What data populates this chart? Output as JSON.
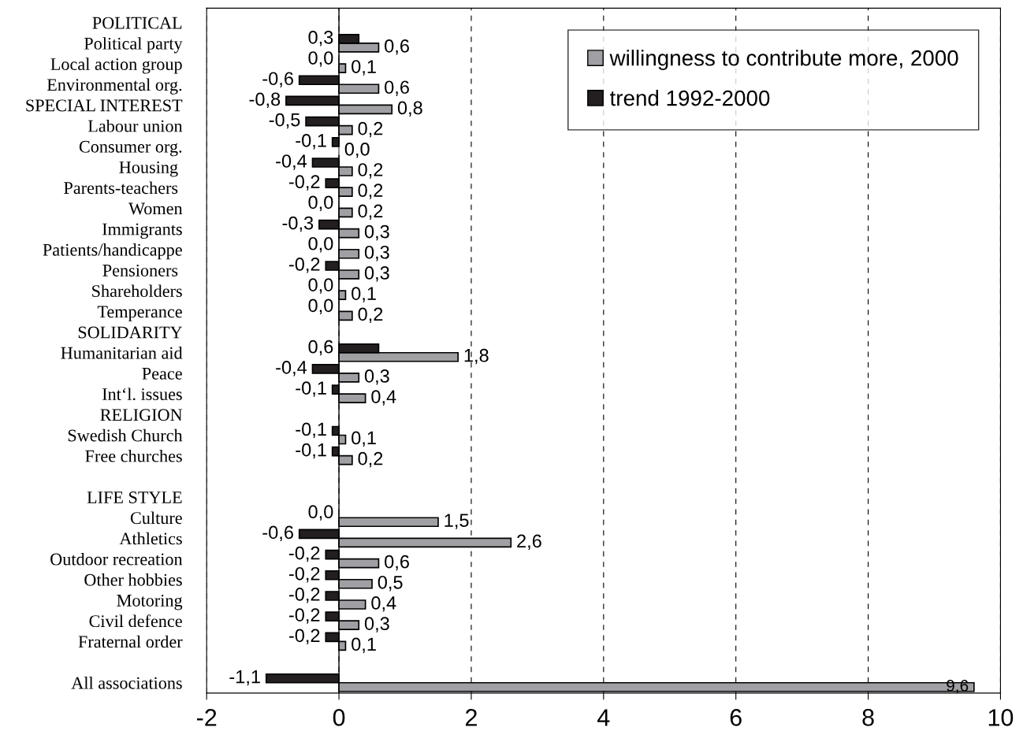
{
  "chart_data": {
    "type": "bar",
    "orientation": "horizontal",
    "categories": [
      "POLITICAL",
      "Political party",
      "Local action group",
      "Environmental org.",
      "SPECIAL INTEREST",
      "Labour union",
      "Consumer org.",
      "Housing ",
      "Parents-teachers ",
      "Women",
      "Immigrants",
      "Patients/handicappe",
      "Pensioners ",
      "Shareholders",
      "Temperance",
      "SOLIDARITY",
      "Humanitarian aid",
      "Peace",
      "Int‘l. issues",
      "RELIGION",
      "Swedish Church",
      "Free churches",
      null,
      "LIFE STYLE",
      "Culture",
      "Athletics",
      "Outdoor recreation",
      "Other hobbies",
      "Motoring",
      "Civil defence",
      "Fraternal order",
      null,
      "All associations"
    ],
    "series": [
      {
        "name": "willingness to contribute more, 2000",
        "color": "#a0a0a4",
        "values": [
          null,
          0.6,
          0.1,
          0.6,
          0.8,
          0.2,
          0.0,
          0.2,
          0.2,
          0.2,
          0.3,
          0.3,
          0.3,
          0.1,
          0.2,
          null,
          1.8,
          0.3,
          0.4,
          null,
          0.1,
          0.2,
          null,
          null,
          1.5,
          2.6,
          0.6,
          0.5,
          0.4,
          0.3,
          0.1,
          null,
          9.6
        ],
        "value_labels": [
          null,
          "0,6",
          "0,1",
          "0,6",
          "0,8",
          "0,2",
          "0,0",
          "0,2",
          "0,2",
          "0,2",
          "0,3",
          "0,3",
          "0,3",
          "0,1",
          "0,2",
          null,
          "1,8",
          "0,3",
          "0,4",
          null,
          "0,1",
          "0,2",
          null,
          null,
          "1,5",
          "2,6",
          "0,6",
          "0,5",
          "0,4",
          "0,3",
          "0,1",
          null,
          "9,6"
        ]
      },
      {
        "name": "trend 1992-2000",
        "color": "#231f20",
        "values": [
          null,
          0.3,
          0.0,
          -0.6,
          -0.8,
          -0.5,
          -0.1,
          -0.4,
          -0.2,
          0.0,
          -0.3,
          0.0,
          -0.2,
          0.0,
          0.0,
          null,
          0.6,
          -0.4,
          -0.1,
          null,
          -0.1,
          -0.1,
          null,
          null,
          0.0,
          -0.6,
          -0.2,
          -0.2,
          -0.2,
          -0.2,
          -0.2,
          null,
          -1.1
        ],
        "value_labels": [
          null,
          "0,3",
          "0,0",
          "-0,6",
          "-0,8",
          "-0,5",
          "-0,1",
          "-0,4",
          "-0,2",
          "0,0",
          "-0,3",
          "0,0",
          "-0,2",
          "0,0",
          "0,0",
          null,
          "0,6",
          "-0,4",
          "-0,1",
          null,
          "-0,1",
          "-0,1",
          null,
          null,
          "0,0",
          "-0,6",
          "-0,2",
          "-0,2",
          "-0,2",
          "-0,2",
          "-0,2",
          null,
          "-1,1"
        ]
      }
    ],
    "xlim": [
      -2,
      10
    ],
    "xticks": [
      -2,
      0,
      2,
      4,
      6,
      8,
      10
    ],
    "grid": "x",
    "line_style": "dashed",
    "legend": "top right",
    "ref_lines": [
      {
        "axis": "x",
        "value": 0,
        "color": "#000000",
        "line_style": "solid"
      }
    ]
  }
}
